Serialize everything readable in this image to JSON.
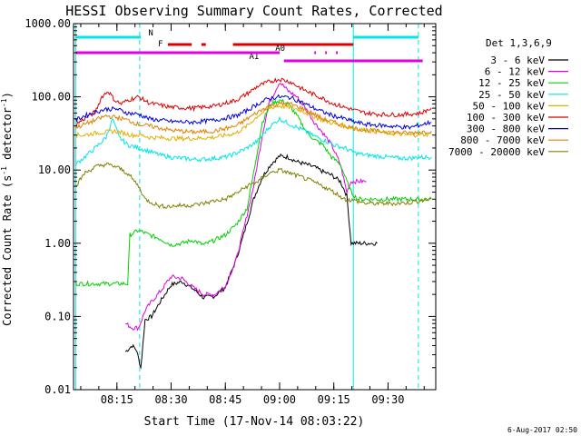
{
  "chart_data": {
    "type": "line",
    "title": "HESSI Observing Summary Count Rates, Corrected",
    "xlabel": "Start Time (17-Nov-14 08:03:22)",
    "ylabel_main": "Corrected Count Rate (s",
    "ylabel_sup": "-1",
    "ylabel_tail": " detector",
    "ylabel_end": ")",
    "y_scale": "log",
    "ylim": [
      0.01,
      1000
    ],
    "xlim_minutes": [
      8.05,
      9.72
    ],
    "x_ticks": [
      {
        "t": 8.25,
        "label": "08:15"
      },
      {
        "t": 8.5,
        "label": "08:30"
      },
      {
        "t": 8.75,
        "label": "08:45"
      },
      {
        "t": 9.0,
        "label": "09:00"
      },
      {
        "t": 9.25,
        "label": "09:15"
      },
      {
        "t": 9.5,
        "label": "09:30"
      }
    ],
    "y_ticks": [
      {
        "v": 0.01,
        "label": "0.01"
      },
      {
        "v": 0.1,
        "label": "0.10"
      },
      {
        "v": 1,
        "label": "1.00"
      },
      {
        "v": 10,
        "label": "10.00"
      },
      {
        "v": 100,
        "label": "100.00"
      },
      {
        "v": 1000,
        "label": "1000.00"
      }
    ],
    "legend_title": "Det 1,3,6,9",
    "legend_placement": "right",
    "footer": "6-Aug-2017 02:50",
    "vertical_lines": [
      {
        "t": 8.06,
        "style": "solid",
        "color": "#00e5e5"
      },
      {
        "t": 8.355,
        "style": "dashed",
        "color": "#00e5e5"
      },
      {
        "t": 9.34,
        "style": "solid",
        "color": "#00e5e5"
      },
      {
        "t": 9.64,
        "style": "dashed",
        "color": "#00e5e5"
      }
    ],
    "flags": [
      {
        "label": "N",
        "color": "#00e5e5",
        "segments": [
          [
            8.06,
            8.36
          ],
          [
            9.34,
            9.64
          ]
        ],
        "y": 1.0,
        "label_t": 8.395
      },
      {
        "label": "F",
        "color": "#dd0000",
        "segments": [
          [
            8.485,
            8.595
          ],
          [
            8.64,
            8.66
          ],
          [
            8.785,
            9.34
          ]
        ],
        "y": 2.0,
        "label_t": 8.44
      },
      {
        "label": "A0",
        "color": "#e000e0",
        "segments": [
          [
            9.16,
            9.168
          ],
          [
            9.21,
            9.218
          ],
          [
            9.26,
            9.268
          ]
        ],
        "y": 3.1,
        "label_t": 8.98
      },
      {
        "label": "A1",
        "color": "#e000e0",
        "segments": [
          [
            9.02,
            9.66
          ]
        ],
        "y": 4.1,
        "label_t": 8.86
      },
      {
        "label": "",
        "color": "#e000e0",
        "segments": [
          [
            8.06,
            9.0
          ]
        ],
        "y": 3.1,
        "label_t": 8.06
      }
    ],
    "series": [
      {
        "name": "3 - 6 keV",
        "color": "#000000",
        "x": [
          8.29,
          8.32,
          8.34,
          8.36,
          8.38,
          8.41,
          8.45,
          8.5,
          8.55,
          8.6,
          8.65,
          8.7,
          8.75,
          8.8,
          8.84,
          8.88,
          8.92,
          8.96,
          9.0,
          9.04,
          9.08,
          9.12,
          9.16,
          9.2,
          9.24,
          9.28,
          9.31,
          9.33,
          9.36,
          9.4,
          9.45
        ],
        "values": [
          0.033,
          0.04,
          0.035,
          0.02,
          0.09,
          0.1,
          0.16,
          0.27,
          0.3,
          0.24,
          0.18,
          0.19,
          0.25,
          0.6,
          1.5,
          4.0,
          8.0,
          12.0,
          15.5,
          15.0,
          13.0,
          12.0,
          11.0,
          9.5,
          8.5,
          7.0,
          4.5,
          1.0,
          1.0,
          1.0,
          1.0
        ]
      },
      {
        "name": "6 - 12 keV",
        "color": "#e000e0",
        "x": [
          8.29,
          8.32,
          8.35,
          8.38,
          8.41,
          8.45,
          8.5,
          8.55,
          8.6,
          8.65,
          8.7,
          8.75,
          8.8,
          8.84,
          8.88,
          8.92,
          8.95,
          9.0,
          9.04,
          9.08,
          9.12,
          9.16,
          9.2,
          9.24,
          9.28,
          9.31,
          9.33,
          9.36,
          9.4
        ],
        "values": [
          0.08,
          0.07,
          0.07,
          0.12,
          0.16,
          0.22,
          0.35,
          0.33,
          0.25,
          0.2,
          0.2,
          0.26,
          0.6,
          1.8,
          6.0,
          30.0,
          80.0,
          160.0,
          120.0,
          100.0,
          70.0,
          45.0,
          32.0,
          22.0,
          12.0,
          5.0,
          7.0,
          7.0,
          7.0
        ]
      },
      {
        "name": "12 - 25 keV",
        "color": "#00d000",
        "x": [
          8.06,
          8.2,
          8.3,
          8.31,
          8.35,
          8.4,
          8.45,
          8.5,
          8.55,
          8.6,
          8.65,
          8.7,
          8.75,
          8.8,
          8.85,
          8.88,
          8.92,
          8.96,
          9.0,
          9.04,
          9.08,
          9.12,
          9.16,
          9.2,
          9.24,
          9.28,
          9.31,
          9.33,
          9.36,
          9.4,
          9.45,
          9.5,
          9.55,
          9.6,
          9.65,
          9.7
        ],
        "values": [
          0.28,
          0.28,
          0.28,
          1.3,
          1.5,
          1.3,
          1.15,
          0.95,
          1.0,
          1.1,
          0.95,
          1.1,
          1.3,
          1.8,
          3.0,
          9.0,
          45.0,
          80.0,
          90.0,
          80.0,
          55.0,
          35.0,
          26.0,
          22.0,
          15.0,
          12.0,
          7.0,
          5.0,
          4.0,
          4.0,
          4.0,
          4.0,
          4.0,
          4.0,
          4.0,
          4.0
        ]
      },
      {
        "name": "25 - 50 keV",
        "color": "#00e5e5",
        "x": [
          8.06,
          8.1,
          8.15,
          8.2,
          8.23,
          8.26,
          8.3,
          8.35,
          8.4,
          8.45,
          8.5,
          8.55,
          8.6,
          8.65,
          8.7,
          8.75,
          8.8,
          8.85,
          8.9,
          8.95,
          9.0,
          9.05,
          9.1,
          9.15,
          9.2,
          9.25,
          9.3,
          9.35,
          9.4,
          9.45,
          9.5,
          9.55,
          9.6,
          9.65,
          9.7
        ],
        "values": [
          12.0,
          15.0,
          20.0,
          28.0,
          50.0,
          28.0,
          22.0,
          20.0,
          18.0,
          16.0,
          15.0,
          14.5,
          14.0,
          14.0,
          14.5,
          15.0,
          17.0,
          20.0,
          25.0,
          38.0,
          50.0,
          42.0,
          36.0,
          30.0,
          26.0,
          22.0,
          20.0,
          17.0,
          16.0,
          15.5,
          15.0,
          14.5,
          14.5,
          15.0,
          15.0
        ]
      },
      {
        "name": "50 - 100 keV",
        "color": "#e0b000",
        "x": [
          8.06,
          8.1,
          8.15,
          8.2,
          8.24,
          8.28,
          8.32,
          8.36,
          8.4,
          8.5,
          8.6,
          8.7,
          8.8,
          8.85,
          8.9,
          8.95,
          9.0,
          9.05,
          9.1,
          9.15,
          9.2,
          9.25,
          9.3,
          9.35,
          9.4,
          9.5,
          9.6,
          9.7
        ],
        "values": [
          30.0,
          30.0,
          32.0,
          33.0,
          34.0,
          32.0,
          30.0,
          30.0,
          28.0,
          27.0,
          27.0,
          28.0,
          32.0,
          40.0,
          55.0,
          70.0,
          75.0,
          72.0,
          65.0,
          55.0,
          48.0,
          43.0,
          40.0,
          37.0,
          35.0,
          32.0,
          30.0,
          31.0
        ]
      },
      {
        "name": "100 - 300 keV",
        "color": "#dd0000",
        "x": [
          8.06,
          8.1,
          8.15,
          8.18,
          8.21,
          8.24,
          8.27,
          8.3,
          8.35,
          8.4,
          8.5,
          8.6,
          8.7,
          8.8,
          8.85,
          8.9,
          8.95,
          9.0,
          9.05,
          9.1,
          9.15,
          9.2,
          9.25,
          9.3,
          9.35,
          9.4,
          9.45,
          9.5,
          9.55,
          9.6,
          9.65,
          9.7
        ],
        "values": [
          42.0,
          50.0,
          62.0,
          100.0,
          120.0,
          90.0,
          80.0,
          90.0,
          100.0,
          82.0,
          72.0,
          70.0,
          75.0,
          90.0,
          110.0,
          140.0,
          160.0,
          175.0,
          160.0,
          130.0,
          110.0,
          95.0,
          80.0,
          72.0,
          65.0,
          60.0,
          58.0,
          57.0,
          57.0,
          58.0,
          60.0,
          70.0
        ]
      },
      {
        "name": "300 - 800 keV",
        "color": "#0000dd",
        "x": [
          8.06,
          8.1,
          8.15,
          8.2,
          8.25,
          8.3,
          8.35,
          8.4,
          8.5,
          8.6,
          8.7,
          8.8,
          8.85,
          8.9,
          8.95,
          9.0,
          9.05,
          9.1,
          9.15,
          9.2,
          9.25,
          9.3,
          9.35,
          9.4,
          9.5,
          9.6,
          9.7
        ],
        "values": [
          48.0,
          55.0,
          62.0,
          68.0,
          68.0,
          60.0,
          58.0,
          50.0,
          46.0,
          45.0,
          48.0,
          55.0,
          65.0,
          80.0,
          95.0,
          100.0,
          98.0,
          85.0,
          72.0,
          62.0,
          55.0,
          50.0,
          45.0,
          42.0,
          40.0,
          38.0,
          45.0
        ]
      },
      {
        "name": "800 - 7000 keV",
        "color": "#e08000",
        "x": [
          8.06,
          8.1,
          8.15,
          8.2,
          8.25,
          8.3,
          8.35,
          8.4,
          8.5,
          8.6,
          8.7,
          8.8,
          8.85,
          8.9,
          8.95,
          9.0,
          9.05,
          9.1,
          9.15,
          9.2,
          9.25,
          9.3,
          9.35,
          9.4,
          9.5,
          9.6,
          9.7
        ],
        "values": [
          38.0,
          42.0,
          48.0,
          55.0,
          52.0,
          48.0,
          42.0,
          40.0,
          35.0,
          33.0,
          34.0,
          40.0,
          50.0,
          62.0,
          75.0,
          80.0,
          80.0,
          70.0,
          60.0,
          50.0,
          45.0,
          40.0,
          37.0,
          35.0,
          33.0,
          32.0,
          34.0
        ]
      },
      {
        "name": "7000 - 20000 keV",
        "color": "#808000",
        "x": [
          8.06,
          8.1,
          8.15,
          8.2,
          8.25,
          8.3,
          8.35,
          8.38,
          8.42,
          8.45,
          8.5,
          8.55,
          8.6,
          8.65,
          8.7,
          8.75,
          8.8,
          8.85,
          8.9,
          8.95,
          9.0,
          9.05,
          9.1,
          9.15,
          9.2,
          9.25,
          9.3,
          9.35,
          9.4,
          9.45,
          9.5,
          9.55,
          9.6,
          9.65,
          9.7
        ],
        "values": [
          6.0,
          9.0,
          11.0,
          12.0,
          11.0,
          9.0,
          6.0,
          4.0,
          3.5,
          3.2,
          3.2,
          3.3,
          3.3,
          3.5,
          3.8,
          4.0,
          4.8,
          6.0,
          7.0,
          9.0,
          10.0,
          9.0,
          8.0,
          7.0,
          6.0,
          5.0,
          4.0,
          3.8,
          3.5,
          3.5,
          3.5,
          3.5,
          3.6,
          3.8,
          4.0
        ]
      }
    ]
  }
}
